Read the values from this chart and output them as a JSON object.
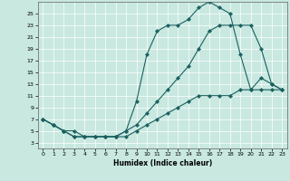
{
  "xlabel": "Humidex (Indice chaleur)",
  "bg_color": "#c8e8e0",
  "line_color": "#1a6060",
  "xlim": [
    -0.5,
    23.5
  ],
  "ylim": [
    2.0,
    27.0
  ],
  "xticks": [
    0,
    1,
    2,
    3,
    4,
    5,
    6,
    7,
    8,
    9,
    10,
    11,
    12,
    13,
    14,
    15,
    16,
    17,
    18,
    19,
    20,
    21,
    22,
    23
  ],
  "yticks": [
    3,
    5,
    7,
    9,
    11,
    13,
    15,
    17,
    19,
    21,
    23,
    25
  ],
  "line1_x": [
    0,
    1,
    2,
    3,
    4,
    5,
    6,
    7,
    8,
    9,
    10,
    11,
    12,
    13,
    14,
    15,
    16,
    17,
    18,
    19,
    20,
    21,
    22,
    23
  ],
  "line1_y": [
    7,
    6,
    5,
    5,
    4,
    4,
    4,
    4,
    5,
    10,
    18,
    22,
    23,
    23,
    24,
    26,
    27,
    26,
    25,
    18,
    12,
    14,
    13,
    12
  ],
  "line2_x": [
    0,
    1,
    2,
    3,
    4,
    5,
    6,
    7,
    8,
    9,
    10,
    11,
    12,
    13,
    14,
    15,
    16,
    17,
    18,
    19,
    20,
    21,
    22,
    23
  ],
  "line2_y": [
    7,
    6,
    5,
    4,
    4,
    4,
    4,
    4,
    5,
    6,
    8,
    10,
    12,
    14,
    16,
    19,
    22,
    23,
    23,
    23,
    23,
    19,
    13,
    12
  ],
  "line3_x": [
    0,
    1,
    2,
    3,
    4,
    5,
    6,
    7,
    8,
    9,
    10,
    11,
    12,
    13,
    14,
    15,
    16,
    17,
    18,
    19,
    20,
    21,
    22,
    23
  ],
  "line3_y": [
    7,
    6,
    5,
    4,
    4,
    4,
    4,
    4,
    4,
    5,
    6,
    7,
    8,
    9,
    10,
    11,
    11,
    11,
    11,
    12,
    12,
    12,
    12,
    12
  ]
}
